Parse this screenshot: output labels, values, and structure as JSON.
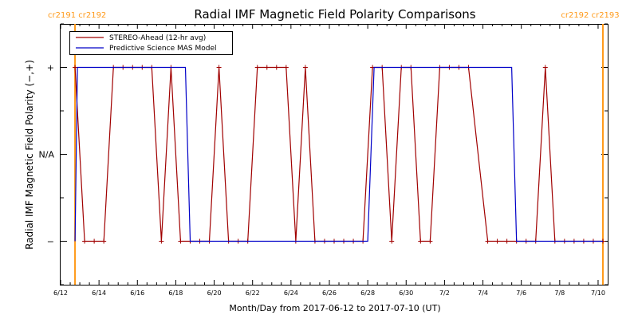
{
  "chart_data": {
    "type": "line",
    "title": "Radial IMF Magnetic Field Polarity Comparisons",
    "xlabel": "Month/Day from 2017-06-12 to 2017-07-10 (UT)",
    "ylabel": "Radial IMF Magnetic Field Polarity (−,+)",
    "xlim": [
      "2017-06-12",
      "2017-07-10 12:00"
    ],
    "x_ticks": [
      "6/12",
      "6/14",
      "6/16",
      "6/18",
      "6/20",
      "6/22",
      "6/24",
      "6/26",
      "6/28",
      "6/30",
      "7/2",
      "7/4",
      "7/6",
      "7/8",
      "7/10"
    ],
    "y_ticks": [
      "+",
      "N/A",
      "−"
    ],
    "y_values": [
      1,
      0,
      -1
    ],
    "ylim": [
      -1.5,
      1.5
    ],
    "legend_position": "top-left",
    "colors": {
      "stereo": "#a00000",
      "model": "#0000c8",
      "cr": "#ff9a1a"
    },
    "carrington": [
      {
        "date": "2017-06-12 18:00",
        "label": "cr2191 cr2192",
        "side": "left"
      },
      {
        "date": "2017-07-10 06:00",
        "label": "cr2192 cr2193",
        "side": "right"
      }
    ],
    "series": [
      {
        "name": "STEREO-Ahead (12-hr avg)",
        "color": "#a00000",
        "points": [
          [
            "2017-06-12 18:00",
            1
          ],
          [
            "2017-06-13 06:00",
            -1
          ],
          [
            "2017-06-13 18:00",
            -1
          ],
          [
            "2017-06-14 06:00",
            -1
          ],
          [
            "2017-06-14 18:00",
            1
          ],
          [
            "2017-06-15 06:00",
            1
          ],
          [
            "2017-06-15 18:00",
            1
          ],
          [
            "2017-06-16 06:00",
            1
          ],
          [
            "2017-06-16 18:00",
            1
          ],
          [
            "2017-06-17 06:00",
            -1
          ],
          [
            "2017-06-17 18:00",
            1
          ],
          [
            "2017-06-18 06:00",
            -1
          ],
          [
            "2017-06-18 18:00",
            -1
          ],
          [
            "2017-06-19 06:00",
            -1
          ],
          [
            "2017-06-19 18:00",
            -1
          ],
          [
            "2017-06-20 06:00",
            1
          ],
          [
            "2017-06-20 18:00",
            -1
          ],
          [
            "2017-06-21 06:00",
            -1
          ],
          [
            "2017-06-21 18:00",
            -1
          ],
          [
            "2017-06-22 06:00",
            1
          ],
          [
            "2017-06-22 18:00",
            1
          ],
          [
            "2017-06-23 06:00",
            1
          ],
          [
            "2017-06-23 18:00",
            1
          ],
          [
            "2017-06-24 06:00",
            -1
          ],
          [
            "2017-06-24 18:00",
            1
          ],
          [
            "2017-06-25 06:00",
            -1
          ],
          [
            "2017-06-25 18:00",
            -1
          ],
          [
            "2017-06-26 06:00",
            -1
          ],
          [
            "2017-06-26 18:00",
            -1
          ],
          [
            "2017-06-27 06:00",
            -1
          ],
          [
            "2017-06-27 18:00",
            -1
          ],
          [
            "2017-06-28 06:00",
            1
          ],
          [
            "2017-06-28 18:00",
            1
          ],
          [
            "2017-06-29 06:00",
            -1
          ],
          [
            "2017-06-29 18:00",
            1
          ],
          [
            "2017-06-30 06:00",
            1
          ],
          [
            "2017-06-30 18:00",
            -1
          ],
          [
            "2017-07-01 06:00",
            -1
          ],
          [
            "2017-07-01 18:00",
            1
          ],
          [
            "2017-07-02 06:00",
            1
          ],
          [
            "2017-07-02 18:00",
            1
          ],
          [
            "2017-07-03 06:00",
            1
          ],
          [
            "2017-07-04 06:00",
            -1
          ],
          [
            "2017-07-04 18:00",
            -1
          ],
          [
            "2017-07-05 06:00",
            -1
          ],
          [
            "2017-07-05 18:00",
            -1
          ],
          [
            "2017-07-06 06:00",
            -1
          ],
          [
            "2017-07-06 18:00",
            -1
          ],
          [
            "2017-07-07 06:00",
            1
          ],
          [
            "2017-07-07 18:00",
            -1
          ],
          [
            "2017-07-08 06:00",
            -1
          ],
          [
            "2017-07-08 18:00",
            -1
          ],
          [
            "2017-07-09 06:00",
            -1
          ],
          [
            "2017-07-09 18:00",
            -1
          ],
          [
            "2017-07-10 06:00",
            -1
          ]
        ]
      },
      {
        "name": "Predictive Science MAS Model",
        "color": "#0000c8",
        "points": [
          [
            "2017-06-12 18:00",
            -1
          ],
          [
            "2017-06-12 21:00",
            1
          ],
          [
            "2017-06-18 12:00",
            1
          ],
          [
            "2017-06-18 18:00",
            -1
          ],
          [
            "2017-06-28 00:00",
            -1
          ],
          [
            "2017-06-28 08:00",
            1
          ],
          [
            "2017-07-05 12:00",
            1
          ],
          [
            "2017-07-05 18:00",
            -1
          ],
          [
            "2017-07-10 06:00",
            -1
          ]
        ]
      }
    ]
  }
}
